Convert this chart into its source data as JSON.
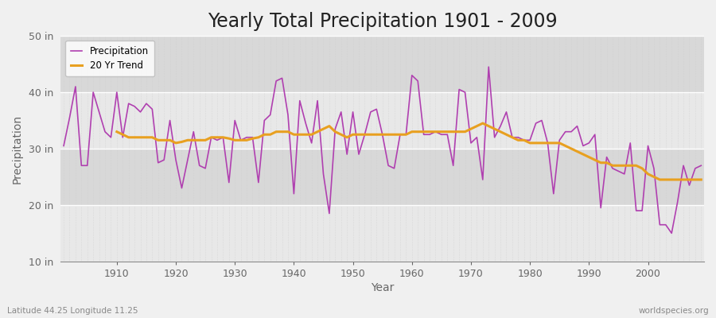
{
  "title": "Yearly Total Precipitation 1901 - 2009",
  "xlabel": "Year",
  "ylabel": "Precipitation",
  "subtitle": "Latitude 44.25 Longitude 11.25",
  "watermark": "worldspecies.org",
  "years": [
    1901,
    1902,
    1903,
    1904,
    1905,
    1906,
    1907,
    1908,
    1909,
    1910,
    1911,
    1912,
    1913,
    1914,
    1915,
    1916,
    1917,
    1918,
    1919,
    1920,
    1921,
    1922,
    1923,
    1924,
    1925,
    1926,
    1927,
    1928,
    1929,
    1930,
    1931,
    1932,
    1933,
    1934,
    1935,
    1936,
    1937,
    1938,
    1939,
    1940,
    1941,
    1942,
    1943,
    1944,
    1945,
    1946,
    1947,
    1948,
    1949,
    1950,
    1951,
    1952,
    1953,
    1954,
    1955,
    1956,
    1957,
    1958,
    1959,
    1960,
    1961,
    1962,
    1963,
    1964,
    1965,
    1966,
    1967,
    1968,
    1969,
    1970,
    1971,
    1972,
    1973,
    1974,
    1975,
    1976,
    1977,
    1978,
    1979,
    1980,
    1981,
    1982,
    1983,
    1984,
    1985,
    1986,
    1987,
    1988,
    1989,
    1990,
    1991,
    1992,
    1993,
    1994,
    1995,
    1996,
    1997,
    1998,
    1999,
    2000,
    2001,
    2002,
    2003,
    2004,
    2005,
    2006,
    2007,
    2008,
    2009
  ],
  "precip": [
    30.5,
    35.5,
    41.0,
    27.0,
    27.0,
    40.0,
    36.5,
    33.0,
    32.0,
    40.0,
    32.0,
    38.0,
    37.5,
    36.5,
    38.0,
    37.0,
    27.5,
    28.0,
    35.0,
    28.0,
    23.0,
    28.0,
    33.0,
    27.0,
    26.5,
    32.0,
    31.5,
    32.0,
    24.0,
    35.0,
    31.5,
    32.0,
    32.0,
    24.0,
    35.0,
    36.0,
    42.0,
    42.5,
    36.0,
    22.0,
    38.5,
    34.5,
    31.0,
    38.5,
    25.5,
    18.5,
    33.5,
    36.5,
    29.0,
    36.5,
    29.0,
    32.5,
    36.5,
    37.0,
    32.5,
    27.0,
    26.5,
    32.5,
    32.5,
    43.0,
    42.0,
    32.5,
    32.5,
    33.0,
    32.5,
    32.5,
    27.0,
    40.5,
    40.0,
    31.0,
    32.0,
    24.5,
    44.5,
    32.0,
    34.0,
    36.5,
    32.0,
    32.0,
    31.5,
    31.5,
    34.5,
    35.0,
    31.0,
    22.0,
    31.5,
    33.0,
    33.0,
    34.0,
    30.5,
    31.0,
    32.5,
    19.5,
    28.5,
    26.5,
    26.0,
    25.5,
    31.0,
    19.0,
    19.0,
    30.5,
    26.5,
    16.5,
    16.5,
    15.0,
    20.5,
    27.0,
    23.5,
    26.5,
    27.0
  ],
  "trend_years": [
    1910,
    1911,
    1912,
    1913,
    1914,
    1915,
    1916,
    1917,
    1918,
    1919,
    1920,
    1921,
    1922,
    1923,
    1924,
    1925,
    1926,
    1927,
    1928,
    1929,
    1930,
    1931,
    1932,
    1933,
    1934,
    1935,
    1936,
    1937,
    1938,
    1939,
    1940,
    1941,
    1942,
    1943,
    1944,
    1945,
    1946,
    1947,
    1948,
    1949,
    1950,
    1951,
    1952,
    1953,
    1954,
    1955,
    1956,
    1957,
    1958,
    1959,
    1960,
    1961,
    1962,
    1963,
    1964,
    1965,
    1966,
    1967,
    1968,
    1969,
    1970,
    1971,
    1972,
    1973,
    1974,
    1975,
    1976,
    1977,
    1978,
    1979,
    1980,
    1981,
    1982,
    1983,
    1984,
    1985,
    1986,
    1987,
    1988,
    1989,
    1990,
    1991,
    1992,
    1993,
    1994,
    1995,
    1996,
    1997,
    1998,
    1999,
    2000,
    2001,
    2002,
    2003,
    2004,
    2005,
    2006,
    2007,
    2008,
    2009
  ],
  "trend": [
    33.0,
    32.5,
    32.0,
    32.0,
    32.0,
    32.0,
    32.0,
    31.5,
    31.5,
    31.5,
    31.0,
    31.2,
    31.5,
    31.5,
    31.5,
    31.5,
    32.0,
    32.0,
    32.0,
    31.8,
    31.5,
    31.5,
    31.5,
    31.8,
    32.0,
    32.5,
    32.5,
    33.0,
    33.0,
    33.0,
    32.5,
    32.5,
    32.5,
    32.5,
    33.0,
    33.5,
    34.0,
    33.0,
    32.5,
    32.0,
    32.5,
    32.5,
    32.5,
    32.5,
    32.5,
    32.5,
    32.5,
    32.5,
    32.5,
    32.5,
    33.0,
    33.0,
    33.0,
    33.0,
    33.0,
    33.0,
    33.0,
    33.0,
    33.0,
    33.0,
    33.5,
    34.0,
    34.5,
    34.0,
    33.5,
    33.0,
    32.5,
    32.0,
    31.5,
    31.5,
    31.0,
    31.0,
    31.0,
    31.0,
    31.0,
    31.0,
    30.5,
    30.0,
    29.5,
    29.0,
    28.5,
    28.0,
    27.5,
    27.5,
    27.0,
    27.0,
    27.0,
    27.0,
    27.0,
    26.5,
    25.5,
    25.0,
    24.5,
    24.5,
    24.5,
    24.5,
    24.5,
    24.5,
    24.5,
    24.5
  ],
  "precip_color": "#b040b0",
  "trend_color": "#e8a020",
  "fig_bg_color": "#f0f0f0",
  "plot_bg_light": "#e8e8e8",
  "plot_bg_dark": "#d8d8d8",
  "grid_color": "#ffffff",
  "grid_vline_color": "#cccccc",
  "ylim": [
    10,
    50
  ],
  "yticks": [
    10,
    20,
    30,
    40,
    50
  ],
  "ytick_labels": [
    "10 in",
    "20 in",
    "30 in",
    "40 in",
    "50 in"
  ],
  "title_fontsize": 17,
  "label_fontsize": 10,
  "tick_fontsize": 9
}
